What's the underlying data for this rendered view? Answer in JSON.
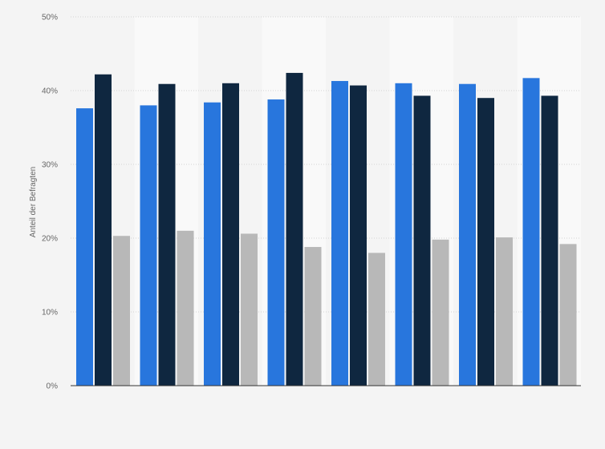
{
  "chart_data": {
    "type": "bar",
    "title": "",
    "xlabel": "",
    "ylabel": "Anteil der Befragten",
    "y_tick_suffix": "%",
    "ylim": [
      0,
      50
    ],
    "yticks": [
      0,
      10,
      20,
      30,
      40,
      50
    ],
    "grid": true,
    "grid_style": "dotted horizontal",
    "alternating_column_bands": true,
    "legend": "none",
    "categories": [
      "",
      "",
      "",
      "",
      "",
      "",
      "",
      ""
    ],
    "series": [
      {
        "color": "#2876dd",
        "values": [
          37.6,
          38.0,
          38.4,
          38.8,
          41.3,
          41.0,
          40.9,
          41.7
        ]
      },
      {
        "color": "#0f2740",
        "values": [
          42.2,
          40.9,
          41.0,
          42.4,
          40.7,
          39.3,
          39.0,
          39.3
        ]
      },
      {
        "color": "#b8b8b8",
        "values": [
          20.3,
          21.0,
          20.6,
          18.8,
          18.0,
          19.8,
          20.1,
          19.2
        ]
      }
    ]
  },
  "colors": {
    "background": "#f4f4f4",
    "band_light": "#f9f9f9",
    "grid": "#d4d4d4",
    "axis": "#333333",
    "text": "#666666"
  }
}
